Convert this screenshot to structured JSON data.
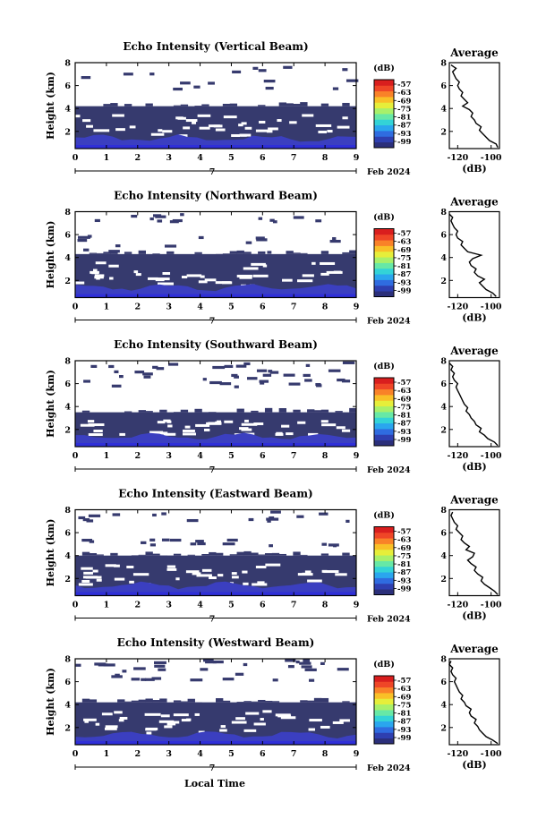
{
  "figure": {
    "bottom_xlabel": "Local Time"
  },
  "chart_data": [
    {
      "type": "heatmap",
      "title": "Echo Intensity (Vertical Beam)",
      "ylabel": "Height (km)",
      "date_label_day": "7",
      "date_label_monthyear": "Feb 2024",
      "x_ticks": [
        0,
        1,
        2,
        3,
        4,
        5,
        6,
        7,
        8,
        9
      ],
      "xlim": [
        0,
        9
      ],
      "y_ticks": [
        2,
        4,
        6,
        8
      ],
      "ylim": [
        0.5,
        8
      ],
      "colorbar_unit": "(dB)",
      "colorbar_ticks": [
        "-57",
        "-63",
        "-69",
        "-75",
        "-81",
        "-87",
        "-93",
        "-99"
      ],
      "dense_layer_top_km": 4.2,
      "sparse_seed": 11,
      "sparse_ranges": [
        [
          6.8,
          7.8
        ],
        [
          5.8,
          6.6
        ]
      ],
      "sparse_count": 8,
      "profile": {
        "title": "Average",
        "xlabel": "(dB)",
        "x_ticks": [
          -120,
          -100
        ],
        "xlim": [
          -125,
          -95
        ],
        "ylim": [
          0.5,
          8
        ],
        "y_ticks": [
          2,
          4,
          6,
          8
        ],
        "heights": [
          0.6,
          0.9,
          1.2,
          1.5,
          1.8,
          2.1,
          2.4,
          2.7,
          3.0,
          3.3,
          3.6,
          3.9,
          4.2,
          4.5,
          4.8,
          5.1,
          5.4,
          5.7,
          6.0,
          6.3,
          6.6,
          6.9,
          7.2,
          7.5,
          7.8
        ],
        "values": [
          -96,
          -97,
          -101,
          -103,
          -105,
          -107,
          -106,
          -109,
          -110,
          -112,
          -111,
          -113,
          -117,
          -114,
          -116,
          -118,
          -117,
          -119,
          -120,
          -119,
          -121,
          -122,
          -123,
          -121,
          -124
        ]
      }
    },
    {
      "type": "heatmap",
      "title": "Echo Intensity (Northward Beam)",
      "ylabel": "Height (km)",
      "date_label_day": "7",
      "date_label_monthyear": "Feb 2024",
      "x_ticks": [
        0,
        1,
        2,
        3,
        4,
        5,
        6,
        7,
        8,
        9
      ],
      "xlim": [
        0,
        9
      ],
      "y_ticks": [
        2,
        4,
        6,
        8
      ],
      "ylim": [
        0.5,
        8
      ],
      "colorbar_unit": "(dB)",
      "colorbar_ticks": [
        "-57",
        "-63",
        "-69",
        "-75",
        "-81",
        "-87",
        "-93",
        "-99"
      ],
      "dense_layer_top_km": 4.3,
      "sparse_seed": 23,
      "sparse_ranges": [
        [
          7.2,
          8.0
        ],
        [
          4.5,
          6.0
        ]
      ],
      "sparse_count": 14,
      "profile": {
        "title": "Average",
        "xlabel": "(dB)",
        "x_ticks": [
          -120,
          -100
        ],
        "xlim": [
          -125,
          -95
        ],
        "ylim": [
          0.5,
          8
        ],
        "y_ticks": [
          2,
          4,
          6,
          8
        ],
        "heights": [
          0.6,
          0.9,
          1.2,
          1.5,
          1.8,
          2.1,
          2.4,
          2.7,
          3.0,
          3.3,
          3.6,
          3.9,
          4.2,
          4.5,
          4.8,
          5.1,
          5.4,
          5.7,
          6.0,
          6.3,
          6.6,
          6.9,
          7.2,
          7.5,
          7.8
        ],
        "values": [
          -97,
          -99,
          -103,
          -105,
          -107,
          -104,
          -108,
          -110,
          -109,
          -112,
          -113,
          -111,
          -106,
          -114,
          -116,
          -118,
          -117,
          -120,
          -121,
          -120,
          -122,
          -123,
          -124,
          -123,
          -125
        ]
      }
    },
    {
      "type": "heatmap",
      "title": "Echo Intensity (Southward Beam)",
      "ylabel": "Height (km)",
      "date_label_day": "7",
      "date_label_monthyear": "Feb 2024",
      "x_ticks": [
        0,
        1,
        2,
        3,
        4,
        5,
        6,
        7,
        8,
        9
      ],
      "xlim": [
        0,
        9
      ],
      "y_ticks": [
        2,
        4,
        6,
        8
      ],
      "ylim": [
        0.5,
        8
      ],
      "colorbar_unit": "(dB)",
      "colorbar_ticks": [
        "-57",
        "-63",
        "-69",
        "-75",
        "-81",
        "-87",
        "-93",
        "-99"
      ],
      "dense_layer_top_km": 3.5,
      "sparse_seed": 37,
      "sparse_ranges": [
        [
          5.8,
          8.0
        ]
      ],
      "sparse_count": 40,
      "profile": {
        "title": "Average",
        "xlabel": "(dB)",
        "x_ticks": [
          -120,
          -100
        ],
        "xlim": [
          -125,
          -95
        ],
        "ylim": [
          0.5,
          8
        ],
        "y_ticks": [
          2,
          4,
          6,
          8
        ],
        "heights": [
          0.6,
          0.9,
          1.2,
          1.5,
          1.8,
          2.1,
          2.4,
          2.7,
          3.0,
          3.3,
          3.6,
          3.9,
          4.2,
          4.5,
          4.8,
          5.1,
          5.4,
          5.7,
          6.0,
          6.3,
          6.6,
          6.9,
          7.2,
          7.5,
          7.8
        ],
        "values": [
          -96,
          -98,
          -102,
          -104,
          -107,
          -106,
          -109,
          -110,
          -112,
          -113,
          -115,
          -114,
          -116,
          -117,
          -118,
          -119,
          -120,
          -121,
          -120,
          -122,
          -123,
          -122,
          -124,
          -123,
          -125
        ]
      }
    },
    {
      "type": "heatmap",
      "title": "Echo Intensity (Eastward Beam)",
      "ylabel": "Height (km)",
      "date_label_day": "7",
      "date_label_monthyear": "Feb 2024",
      "x_ticks": [
        0,
        1,
        2,
        3,
        4,
        5,
        6,
        7,
        8,
        9
      ],
      "xlim": [
        0,
        9
      ],
      "y_ticks": [
        2,
        4,
        6,
        8
      ],
      "ylim": [
        0.5,
        8
      ],
      "colorbar_unit": "(dB)",
      "colorbar_ticks": [
        "-57",
        "-63",
        "-69",
        "-75",
        "-81",
        "-87",
        "-93",
        "-99"
      ],
      "dense_layer_top_km": 4.0,
      "sparse_seed": 51,
      "sparse_ranges": [
        [
          7.0,
          8.0
        ],
        [
          4.8,
          5.6
        ]
      ],
      "sparse_count": 16,
      "profile": {
        "title": "Average",
        "xlabel": "(dB)",
        "x_ticks": [
          -120,
          -100
        ],
        "xlim": [
          -125,
          -95
        ],
        "ylim": [
          0.5,
          8
        ],
        "y_ticks": [
          2,
          4,
          6,
          8
        ],
        "heights": [
          0.6,
          0.9,
          1.2,
          1.5,
          1.8,
          2.1,
          2.4,
          2.7,
          3.0,
          3.3,
          3.6,
          3.9,
          4.2,
          4.5,
          4.8,
          5.1,
          5.4,
          5.7,
          6.0,
          6.3,
          6.6,
          6.9,
          7.2,
          7.5,
          7.8
        ],
        "values": [
          -96,
          -98,
          -101,
          -104,
          -106,
          -105,
          -108,
          -110,
          -109,
          -112,
          -114,
          -111,
          -110,
          -115,
          -113,
          -116,
          -118,
          -117,
          -119,
          -121,
          -120,
          -122,
          -123,
          -124,
          -123
        ]
      }
    },
    {
      "type": "heatmap",
      "title": "Echo Intensity (Westward Beam)",
      "ylabel": "Height (km)",
      "date_label_day": "7",
      "date_label_monthyear": "Feb 2024",
      "x_ticks": [
        0,
        1,
        2,
        3,
        4,
        5,
        6,
        7,
        8,
        9
      ],
      "xlim": [
        0,
        9
      ],
      "y_ticks": [
        2,
        4,
        6,
        8
      ],
      "ylim": [
        0.5,
        8
      ],
      "colorbar_unit": "(dB)",
      "colorbar_ticks": [
        "-57",
        "-63",
        "-69",
        "-75",
        "-81",
        "-87",
        "-93",
        "-99"
      ],
      "dense_layer_top_km": 4.2,
      "sparse_seed": 73,
      "sparse_ranges": [
        [
          6.2,
          8.0
        ]
      ],
      "sparse_count": 34,
      "profile": {
        "title": "Average",
        "xlabel": "(dB)",
        "x_ticks": [
          -120,
          -100
        ],
        "xlim": [
          -125,
          -95
        ],
        "ylim": [
          0.5,
          8
        ],
        "y_ticks": [
          2,
          4,
          6,
          8
        ],
        "heights": [
          0.6,
          0.9,
          1.2,
          1.5,
          1.8,
          2.1,
          2.4,
          2.7,
          3.0,
          3.3,
          3.6,
          3.9,
          4.2,
          4.5,
          4.8,
          5.1,
          5.4,
          5.7,
          6.0,
          6.3,
          6.6,
          6.9,
          7.2,
          7.5,
          7.8
        ],
        "values": [
          -96,
          -99,
          -103,
          -105,
          -107,
          -108,
          -110,
          -109,
          -112,
          -113,
          -112,
          -115,
          -116,
          -118,
          -117,
          -119,
          -120,
          -121,
          -122,
          -121,
          -123,
          -124,
          -123,
          -125,
          -124
        ]
      }
    }
  ],
  "colors": {
    "background_echo": "#363a6e",
    "strong_echo": "#3b3fc0",
    "colorbar": [
      "#2b2f7a",
      "#2e3fb0",
      "#2f6ce0",
      "#2aa6ee",
      "#33d3d7",
      "#67e8a6",
      "#a8f06a",
      "#e6ee3a",
      "#f9c027",
      "#f98228",
      "#ef4627",
      "#d91e1e"
    ]
  }
}
